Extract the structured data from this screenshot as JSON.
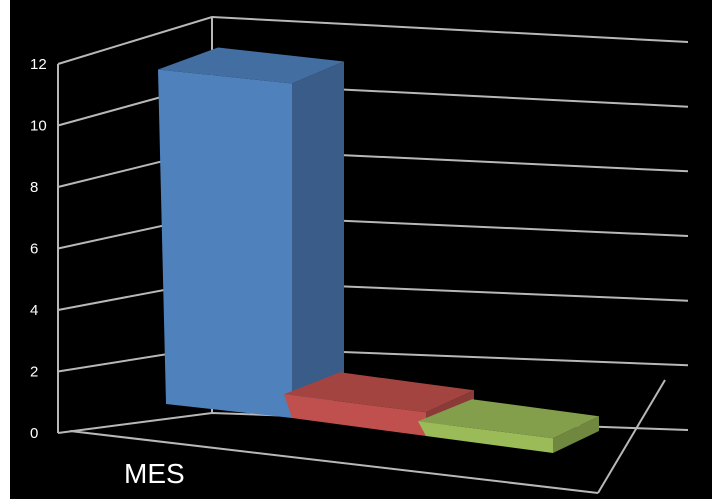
{
  "chart_data": {
    "type": "bar",
    "style": "3d-column",
    "categories": [
      "MES"
    ],
    "series": [
      {
        "values": [
          11.3
        ],
        "color": "#4f81bd"
      },
      {
        "values": [
          0.8
        ],
        "color": "#c0504d"
      },
      {
        "values": [
          0.5
        ],
        "color": "#9bbb59"
      }
    ],
    "ylim": [
      0,
      12
    ],
    "yticks": [
      "0",
      "2",
      "4",
      "6",
      "8",
      "10",
      "12"
    ],
    "grid": true,
    "legend": "none",
    "title": "",
    "xlabel": "",
    "ylabel": ""
  }
}
